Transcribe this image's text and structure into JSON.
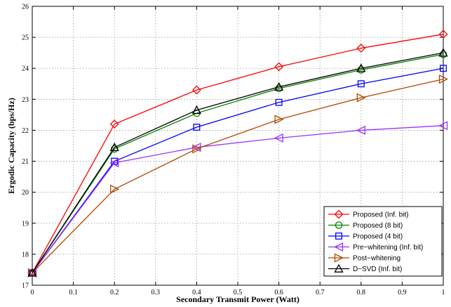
{
  "chart_data": {
    "type": "line",
    "xlabel": "Secondary Transmit Power (Watt)",
    "ylabel": "Ergodic Capacity (bps/Hz)",
    "xlim": [
      0,
      1
    ],
    "ylim": [
      17,
      26
    ],
    "xticks": [
      "0",
      "0.1",
      "0.2",
      "0.3",
      "0.4",
      "0.5",
      "0.6",
      "0.7",
      "0.8",
      "0.9",
      "1"
    ],
    "yticks": [
      "17",
      "18",
      "19",
      "20",
      "21",
      "22",
      "23",
      "24",
      "25",
      "26"
    ],
    "grid": true,
    "legend_position": "bottom-right",
    "x": [
      0,
      0.2,
      0.4,
      0.6,
      0.8,
      1.0
    ],
    "series": [
      {
        "name": "Proposed (Inf. bit)",
        "color": "#ff0000",
        "marker": "diamond",
        "values": [
          17.4,
          22.2,
          23.3,
          24.05,
          24.65,
          25.1
        ]
      },
      {
        "name": "Proposed (8 bit)",
        "color": "#008000",
        "marker": "circle",
        "values": [
          17.4,
          21.4,
          22.55,
          23.35,
          23.95,
          24.45
        ]
      },
      {
        "name": "Proposed (4 bit)",
        "color": "#0000ff",
        "marker": "square",
        "values": [
          17.4,
          21.0,
          22.1,
          22.9,
          23.5,
          24.0
        ]
      },
      {
        "name": "Pre−whitening (Inf. bit)",
        "color": "#9933ff",
        "marker": "triangle-left",
        "values": [
          17.4,
          20.95,
          21.45,
          21.75,
          22.0,
          22.15
        ]
      },
      {
        "name": "Post−whitening",
        "color": "#b34700",
        "marker": "triangle-right",
        "values": [
          17.4,
          20.1,
          21.4,
          22.35,
          23.05,
          23.65
        ]
      },
      {
        "name": "D−SVD (Inf. bit)",
        "color": "#000000",
        "marker": "triangle-up",
        "values": [
          17.4,
          21.45,
          22.65,
          23.4,
          24.0,
          24.5
        ]
      }
    ]
  }
}
